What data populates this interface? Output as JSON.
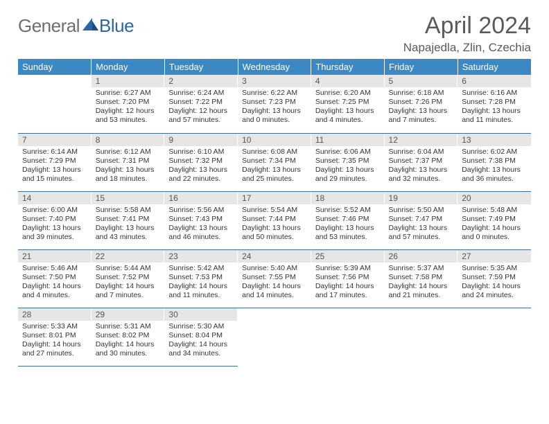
{
  "logo": {
    "general": "General",
    "blue": "Blue"
  },
  "title": "April 2024",
  "location": "Napajedla, Zlin, Czechia",
  "colors": {
    "header_bg": "#3b88c3",
    "header_fg": "#ffffff",
    "rule": "#3a6fa0",
    "daynum_bg": "#e6e6e6"
  },
  "weekdays": [
    "Sunday",
    "Monday",
    "Tuesday",
    "Wednesday",
    "Thursday",
    "Friday",
    "Saturday"
  ],
  "weeks": [
    [
      null,
      {
        "n": "1",
        "sr": "6:27 AM",
        "ss": "7:20 PM",
        "dl": "12 hours and 53 minutes."
      },
      {
        "n": "2",
        "sr": "6:24 AM",
        "ss": "7:22 PM",
        "dl": "12 hours and 57 minutes."
      },
      {
        "n": "3",
        "sr": "6:22 AM",
        "ss": "7:23 PM",
        "dl": "13 hours and 0 minutes."
      },
      {
        "n": "4",
        "sr": "6:20 AM",
        "ss": "7:25 PM",
        "dl": "13 hours and 4 minutes."
      },
      {
        "n": "5",
        "sr": "6:18 AM",
        "ss": "7:26 PM",
        "dl": "13 hours and 7 minutes."
      },
      {
        "n": "6",
        "sr": "6:16 AM",
        "ss": "7:28 PM",
        "dl": "13 hours and 11 minutes."
      }
    ],
    [
      {
        "n": "7",
        "sr": "6:14 AM",
        "ss": "7:29 PM",
        "dl": "13 hours and 15 minutes."
      },
      {
        "n": "8",
        "sr": "6:12 AM",
        "ss": "7:31 PM",
        "dl": "13 hours and 18 minutes."
      },
      {
        "n": "9",
        "sr": "6:10 AM",
        "ss": "7:32 PM",
        "dl": "13 hours and 22 minutes."
      },
      {
        "n": "10",
        "sr": "6:08 AM",
        "ss": "7:34 PM",
        "dl": "13 hours and 25 minutes."
      },
      {
        "n": "11",
        "sr": "6:06 AM",
        "ss": "7:35 PM",
        "dl": "13 hours and 29 minutes."
      },
      {
        "n": "12",
        "sr": "6:04 AM",
        "ss": "7:37 PM",
        "dl": "13 hours and 32 minutes."
      },
      {
        "n": "13",
        "sr": "6:02 AM",
        "ss": "7:38 PM",
        "dl": "13 hours and 36 minutes."
      }
    ],
    [
      {
        "n": "14",
        "sr": "6:00 AM",
        "ss": "7:40 PM",
        "dl": "13 hours and 39 minutes."
      },
      {
        "n": "15",
        "sr": "5:58 AM",
        "ss": "7:41 PM",
        "dl": "13 hours and 43 minutes."
      },
      {
        "n": "16",
        "sr": "5:56 AM",
        "ss": "7:43 PM",
        "dl": "13 hours and 46 minutes."
      },
      {
        "n": "17",
        "sr": "5:54 AM",
        "ss": "7:44 PM",
        "dl": "13 hours and 50 minutes."
      },
      {
        "n": "18",
        "sr": "5:52 AM",
        "ss": "7:46 PM",
        "dl": "13 hours and 53 minutes."
      },
      {
        "n": "19",
        "sr": "5:50 AM",
        "ss": "7:47 PM",
        "dl": "13 hours and 57 minutes."
      },
      {
        "n": "20",
        "sr": "5:48 AM",
        "ss": "7:49 PM",
        "dl": "14 hours and 0 minutes."
      }
    ],
    [
      {
        "n": "21",
        "sr": "5:46 AM",
        "ss": "7:50 PM",
        "dl": "14 hours and 4 minutes."
      },
      {
        "n": "22",
        "sr": "5:44 AM",
        "ss": "7:52 PM",
        "dl": "14 hours and 7 minutes."
      },
      {
        "n": "23",
        "sr": "5:42 AM",
        "ss": "7:53 PM",
        "dl": "14 hours and 11 minutes."
      },
      {
        "n": "24",
        "sr": "5:40 AM",
        "ss": "7:55 PM",
        "dl": "14 hours and 14 minutes."
      },
      {
        "n": "25",
        "sr": "5:39 AM",
        "ss": "7:56 PM",
        "dl": "14 hours and 17 minutes."
      },
      {
        "n": "26",
        "sr": "5:37 AM",
        "ss": "7:58 PM",
        "dl": "14 hours and 21 minutes."
      },
      {
        "n": "27",
        "sr": "5:35 AM",
        "ss": "7:59 PM",
        "dl": "14 hours and 24 minutes."
      }
    ],
    [
      {
        "n": "28",
        "sr": "5:33 AM",
        "ss": "8:01 PM",
        "dl": "14 hours and 27 minutes."
      },
      {
        "n": "29",
        "sr": "5:31 AM",
        "ss": "8:02 PM",
        "dl": "14 hours and 30 minutes."
      },
      {
        "n": "30",
        "sr": "5:30 AM",
        "ss": "8:04 PM",
        "dl": "14 hours and 34 minutes."
      },
      null,
      null,
      null,
      null
    ]
  ]
}
